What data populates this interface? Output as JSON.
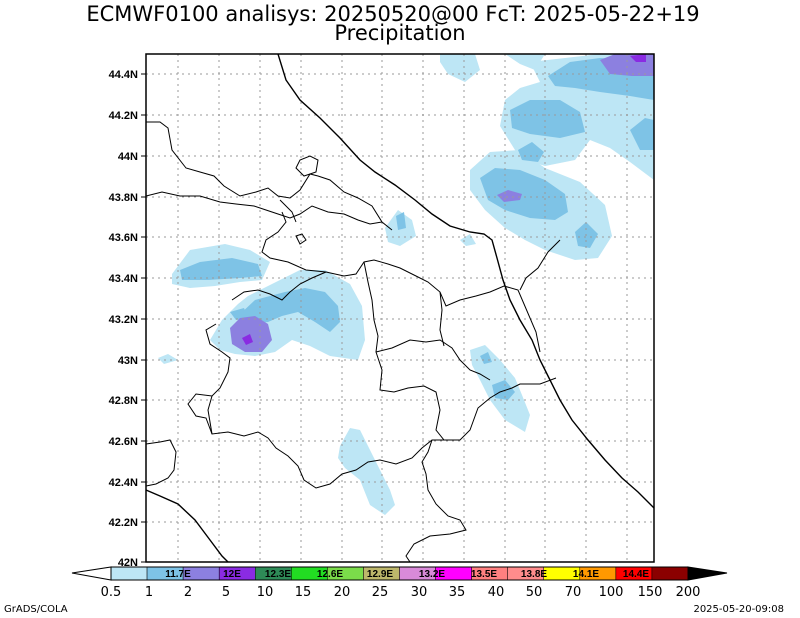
{
  "title": {
    "line1": "ECMWF0100 analisys: 20250520@00 FcT: 2025-05-22+19",
    "line2": "Precipitation"
  },
  "map": {
    "lat_labels": [
      "44.4N",
      "44.2N",
      "44N",
      "43.8N",
      "43.6N",
      "43.4N",
      "43.2N",
      "43N",
      "42.8N",
      "42.6N",
      "42.4N",
      "42.2N",
      "42N"
    ],
    "lon_labels": [
      "11.7E",
      "12E",
      "12.3E",
      "12.6E",
      "12.9E",
      "13.2E",
      "13.5E",
      "13.8E",
      "14.1E",
      "14.4E"
    ],
    "grid": true
  },
  "colorbar": {
    "labels": [
      "0.5",
      "1",
      "2",
      "5",
      "10",
      "15",
      "20",
      "25",
      "30",
      "35",
      "40",
      "50",
      "70",
      "100",
      "150",
      "200"
    ],
    "colors": [
      "#bde6f5",
      "#7ec3e6",
      "#8c80e0",
      "#8a2be2",
      "#2e8b57",
      "#22dd22",
      "#7bdc4a",
      "#bdb76b",
      "#d98ad9",
      "#ff00ff",
      "#ff8080",
      "#ff8c8c",
      "#ffff00",
      "#ff9900",
      "#ff0000",
      "#8b0000"
    ]
  },
  "footer": {
    "left": "GrADS/COLA",
    "right": "2025-05-20-09:08"
  }
}
